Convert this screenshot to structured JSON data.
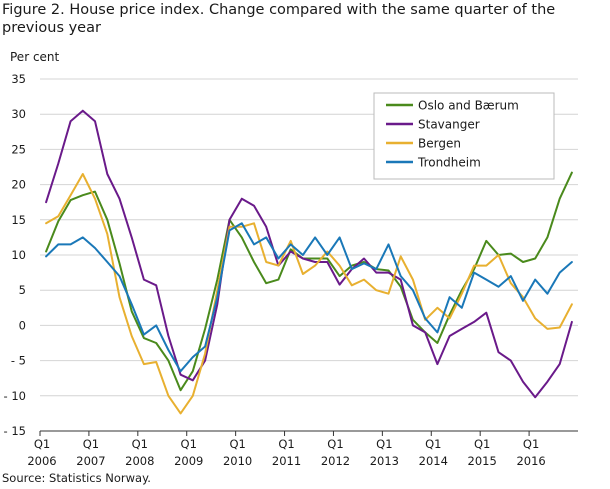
{
  "title": "Figure 2. House price index. Change compared with the same quarter of the previous year",
  "source": "Source: Statistics Norway.",
  "chart_data": {
    "type": "line",
    "title": "Figure 2. House price index. Change compared with the same quarter of the previous year",
    "ylabel": "Per cent",
    "xlabel": "",
    "ylim": [
      -15,
      35
    ],
    "yticks": [
      35,
      30,
      25,
      20,
      15,
      10,
      5,
      0,
      -5,
      -10,
      -15
    ],
    "ytick_labels": [
      "35",
      "30",
      "25",
      "20",
      "15",
      "10",
      "5",
      "0",
      "- 5",
      "- 10",
      "- 15"
    ],
    "xtick_labels": [
      {
        "q": "Q1",
        "year": "2006"
      },
      {
        "q": "Q1",
        "year": "2007"
      },
      {
        "q": "Q1",
        "year": "2008"
      },
      {
        "q": "Q1",
        "year": "2009"
      },
      {
        "q": "Q1",
        "year": "2010"
      },
      {
        "q": "Q1",
        "year": "2011"
      },
      {
        "q": "Q1",
        "year": "2012"
      },
      {
        "q": "Q1",
        "year": "2013"
      },
      {
        "q": "Q1",
        "year": "2014"
      },
      {
        "q": "Q1",
        "year": "2015"
      },
      {
        "q": "Q1",
        "year": "2016"
      }
    ],
    "x": [
      "2006Q1",
      "2006Q2",
      "2006Q3",
      "2006Q4",
      "2007Q1",
      "2007Q2",
      "2007Q3",
      "2007Q4",
      "2008Q1",
      "2008Q2",
      "2008Q3",
      "2008Q4",
      "2009Q1",
      "2009Q2",
      "2009Q3",
      "2009Q4",
      "2010Q1",
      "2010Q2",
      "2010Q3",
      "2010Q4",
      "2011Q1",
      "2011Q2",
      "2011Q3",
      "2011Q4",
      "2012Q1",
      "2012Q2",
      "2012Q3",
      "2012Q4",
      "2013Q1",
      "2013Q2",
      "2013Q3",
      "2013Q4",
      "2014Q1",
      "2014Q2",
      "2014Q3",
      "2014Q4",
      "2015Q1",
      "2015Q2",
      "2015Q3",
      "2015Q4",
      "2016Q1",
      "2016Q2",
      "2016Q3",
      "2016Q4"
    ],
    "grid": "horizontal",
    "legend_position": "top-right",
    "series": [
      {
        "name": "Oslo and Bærum",
        "color": "#4a8a1c",
        "values": [
          10.5,
          14.8,
          17.8,
          18.5,
          19.0,
          15.0,
          8.8,
          2.0,
          -1.8,
          -2.5,
          -5.0,
          -9.2,
          -6.5,
          -0.5,
          6.5,
          15.0,
          12.5,
          9.0,
          6.0,
          6.5,
          10.8,
          9.5,
          9.5,
          9.5,
          7.0,
          8.5,
          9.0,
          8.0,
          7.8,
          5.5,
          0.8,
          -1.0,
          -2.5,
          1.5,
          5.0,
          8.0,
          12.0,
          10.0,
          10.2,
          9.0,
          9.5,
          12.5,
          18.0,
          21.7
        ]
      },
      {
        "name": "Stavanger",
        "color": "#6a1a8a",
        "values": [
          17.5,
          23.0,
          29.0,
          30.5,
          29.0,
          21.5,
          18.0,
          12.5,
          6.5,
          5.7,
          -1.5,
          -7.0,
          -7.8,
          -5.0,
          3.0,
          15.0,
          18.0,
          17.0,
          14.0,
          8.5,
          10.5,
          9.5,
          9.0,
          9.0,
          5.8,
          8.0,
          9.5,
          7.5,
          7.5,
          6.5,
          0.0,
          -1.0,
          -5.5,
          -1.5,
          -0.5,
          0.5,
          1.8,
          -3.8,
          -5.0,
          -8.0,
          -10.2,
          -8.0,
          -5.5,
          0.5
        ]
      },
      {
        "name": "Bergen",
        "color": "#e8b030",
        "values": [
          14.5,
          15.5,
          18.5,
          21.5,
          18.0,
          13.0,
          4.0,
          -1.5,
          -5.5,
          -5.2,
          -10.0,
          -12.5,
          -10.0,
          -4.0,
          5.0,
          14.0,
          14.0,
          14.5,
          9.0,
          8.5,
          12.0,
          7.3,
          8.5,
          10.5,
          8.5,
          5.7,
          6.5,
          5.0,
          4.5,
          9.8,
          6.5,
          0.8,
          2.5,
          1.0,
          4.5,
          8.5,
          8.5,
          10.0,
          6.0,
          4.0,
          1.0,
          -0.5,
          -0.3,
          3.0
        ]
      },
      {
        "name": "Trondheim",
        "color": "#1a78b8",
        "values": [
          9.8,
          11.5,
          11.5,
          12.5,
          11.0,
          9.0,
          7.0,
          3.0,
          -1.3,
          0.0,
          -3.5,
          -6.5,
          -4.5,
          -3.0,
          4.0,
          13.5,
          14.5,
          11.5,
          12.5,
          9.5,
          11.5,
          10.0,
          12.5,
          10.0,
          12.5,
          8.0,
          8.8,
          8.0,
          11.5,
          7.0,
          5.0,
          1.0,
          -1.0,
          4.0,
          2.5,
          7.5,
          6.5,
          5.5,
          7.0,
          3.5,
          6.5,
          4.5,
          7.5,
          9.0
        ]
      }
    ]
  }
}
